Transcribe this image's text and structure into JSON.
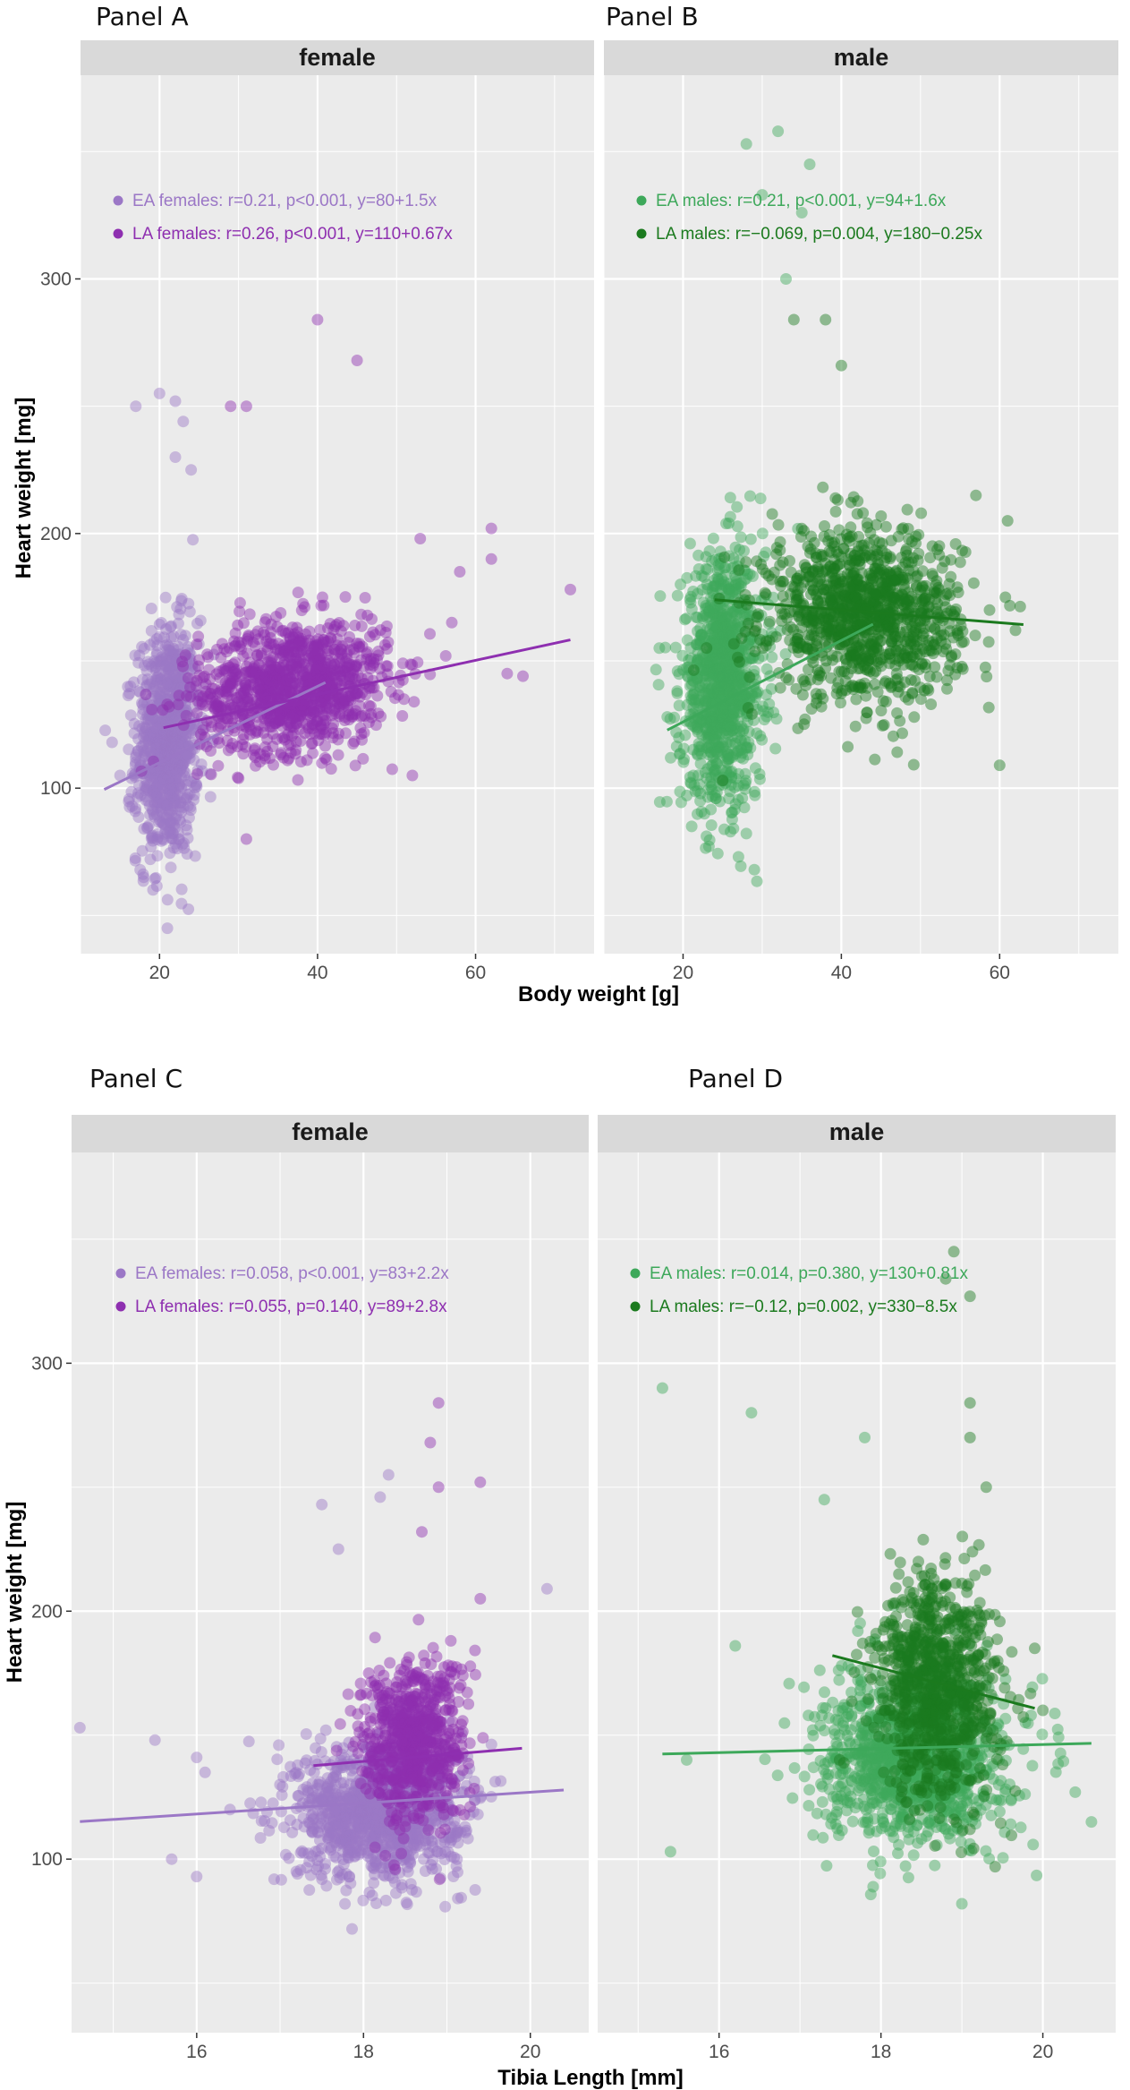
{
  "figure": {
    "top_row": {
      "panel_labels": [
        "Panel A",
        "Panel B"
      ],
      "x_title": "Body weight [g]",
      "y_title": "Heart weight [mg]"
    },
    "bottom_row": {
      "panel_labels": [
        "Panel C",
        "Panel D"
      ],
      "x_title": "Tibia Length [mm]",
      "y_title": "Heart weight [mg]"
    }
  },
  "colors": {
    "ea_female": "#9B77C6",
    "la_female": "#8E2FB0",
    "ea_male": "#3DA85A",
    "la_male": "#1B7A1E",
    "panel_background": "#EBEBEB",
    "strip_background": "#D9D9D9",
    "gridline": "#FFFFFF"
  },
  "chart_data": [
    {
      "type": "scatter",
      "panel": "Panel A",
      "strip": "female",
      "xlabel": "Body weight [g]",
      "ylabel": "Heart weight [mg]",
      "xlim": [
        10,
        75
      ],
      "ylim": [
        35,
        380
      ],
      "x_ticks": [
        20,
        40,
        60
      ],
      "y_ticks": [
        100,
        200,
        300
      ],
      "grid": true,
      "legend_position": "top-left",
      "series": [
        {
          "name": "EA females",
          "legend": "EA females: r=0.21, p<0.001, y=80+1.5x",
          "color_key": "ea_female",
          "cloud": {
            "x_center": 21,
            "x_spread": 2.6,
            "y_center": 118,
            "y_spread": 30,
            "n": 900
          },
          "fit": {
            "intercept": 80,
            "slope": 1.5,
            "x_range": [
              13,
              41
            ]
          },
          "outliers": [
            [
              17,
              250
            ],
            [
              20,
              255
            ],
            [
              22,
              252
            ],
            [
              23,
              244
            ],
            [
              22,
              230
            ],
            [
              21,
              45
            ],
            [
              18,
              65
            ],
            [
              14,
              118
            ],
            [
              15,
              105
            ],
            [
              24,
              225
            ]
          ]
        },
        {
          "name": "LA females",
          "legend": "LA females: r=0.26, p<0.001, y=110+0.67x",
          "color_key": "la_female",
          "cloud": {
            "x_center": 37,
            "x_spread": 8,
            "y_center": 140,
            "y_spread": 17,
            "n": 1100
          },
          "fit": {
            "intercept": 110,
            "slope": 0.67,
            "x_range": [
              20.5,
              72
            ]
          },
          "outliers": [
            [
              40,
              284
            ],
            [
              45,
              268
            ],
            [
              29,
              250
            ],
            [
              31,
              250
            ],
            [
              72,
              178
            ],
            [
              62,
              202
            ],
            [
              62,
              190
            ],
            [
              64,
              145
            ],
            [
              66,
              144
            ],
            [
              53,
              198
            ],
            [
              58,
              185
            ],
            [
              57,
              165
            ],
            [
              52,
              105
            ],
            [
              31,
              80
            ]
          ]
        }
      ]
    },
    {
      "type": "scatter",
      "panel": "Panel B",
      "strip": "male",
      "xlabel": "Body weight [g]",
      "ylabel": "Heart weight [mg]",
      "xlim": [
        10,
        75
      ],
      "ylim": [
        35,
        380
      ],
      "x_ticks": [
        20,
        40,
        60
      ],
      "y_ticks": [
        100,
        200,
        300
      ],
      "grid": true,
      "legend_position": "top-left",
      "series": [
        {
          "name": "EA males",
          "legend": "EA males: r=0.21, p<0.001, y=94+1.6x",
          "color_key": "ea_male",
          "cloud": {
            "x_center": 25,
            "x_spread": 3.5,
            "y_center": 142,
            "y_spread": 32,
            "n": 1000
          },
          "fit": {
            "intercept": 94,
            "slope": 1.6,
            "x_range": [
              18,
              44
            ]
          },
          "outliers": [
            [
              28,
              353
            ],
            [
              32,
              358
            ],
            [
              30,
              333
            ],
            [
              36,
              345
            ],
            [
              35,
              326
            ],
            [
              17,
              155
            ],
            [
              18,
              128
            ],
            [
              27,
              73
            ],
            [
              29,
              68
            ],
            [
              33,
              300
            ]
          ]
        },
        {
          "name": "LA males",
          "legend": "LA males: r=−0.069, p=0.004, y=180−0.25x",
          "color_key": "la_male",
          "cloud": {
            "x_center": 43,
            "x_spread": 8,
            "y_center": 168,
            "y_spread": 22,
            "n": 1100
          },
          "fit": {
            "intercept": 180,
            "slope": -0.25,
            "x_range": [
              24,
              63
            ]
          },
          "outliers": [
            [
              38,
              284
            ],
            [
              34,
              284
            ],
            [
              40,
              266
            ],
            [
              61,
              205
            ],
            [
              62,
              162
            ],
            [
              60,
              109
            ],
            [
              57,
              215
            ],
            [
              25,
              103
            ]
          ]
        }
      ]
    },
    {
      "type": "scatter",
      "panel": "Panel C",
      "strip": "female",
      "xlabel": "Tibia Length [mm]",
      "ylabel": "Heart weight [mg]",
      "xlim": [
        14.5,
        20.7
      ],
      "ylim": [
        30,
        385
      ],
      "x_ticks": [
        16,
        18,
        20
      ],
      "y_ticks": [
        100,
        200,
        300
      ],
      "grid": true,
      "legend_position": "top-left",
      "series": [
        {
          "name": "EA females",
          "legend": "EA females: r=0.058, p<0.001, y=83+2.2x",
          "color_key": "ea_female",
          "cloud": {
            "x_center": 18.2,
            "x_spread": 0.65,
            "y_center": 120,
            "y_spread": 18,
            "n": 1200
          },
          "fit": {
            "intercept": 83,
            "slope": 2.2,
            "x_range": [
              14.6,
              20.4
            ]
          },
          "outliers": [
            [
              14.6,
              153
            ],
            [
              15.5,
              148
            ],
            [
              16,
              141
            ],
            [
              16.1,
              135
            ],
            [
              15.7,
              100
            ],
            [
              16,
              93
            ],
            [
              16.4,
              120
            ],
            [
              20.2,
              209
            ],
            [
              17.5,
              243
            ],
            [
              17.7,
              225
            ],
            [
              18.2,
              246
            ],
            [
              18.3,
              255
            ]
          ]
        },
        {
          "name": "LA females",
          "legend": "LA females: r=0.055, p=0.140, y=89+2.8x",
          "color_key": "la_female",
          "cloud": {
            "x_center": 18.6,
            "x_spread": 0.42,
            "y_center": 148,
            "y_spread": 22,
            "n": 700
          },
          "fit": {
            "intercept": 89,
            "slope": 2.8,
            "x_range": [
              17.4,
              19.9
            ]
          },
          "outliers": [
            [
              18.9,
              284
            ],
            [
              18.8,
              268
            ],
            [
              18.9,
              250
            ],
            [
              19.4,
              252
            ],
            [
              18.7,
              232
            ],
            [
              19.4,
              205
            ]
          ]
        }
      ]
    },
    {
      "type": "scatter",
      "panel": "Panel D",
      "strip": "male",
      "xlabel": "Tibia Length [mm]",
      "ylabel": "Heart weight [mg]",
      "xlim": [
        14.5,
        20.9
      ],
      "ylim": [
        30,
        385
      ],
      "x_ticks": [
        16,
        18,
        20
      ],
      "y_ticks": [
        100,
        200,
        300
      ],
      "grid": true,
      "legend_position": "top-left",
      "series": [
        {
          "name": "EA males",
          "legend": "EA males: r=0.014, p=0.380, y=130+0.81x",
          "color_key": "ea_male",
          "cloud": {
            "x_center": 18.4,
            "x_spread": 0.75,
            "y_center": 140,
            "y_spread": 22,
            "n": 1100
          },
          "fit": {
            "intercept": 130,
            "slope": 0.81,
            "x_range": [
              15.3,
              20.6
            ]
          },
          "outliers": [
            [
              15.3,
              290
            ],
            [
              16.4,
              280
            ],
            [
              16.2,
              186
            ],
            [
              15.6,
              140
            ],
            [
              15.4,
              103
            ],
            [
              17.3,
              245
            ],
            [
              19,
              82
            ],
            [
              20.6,
              115
            ],
            [
              20.4,
              127
            ],
            [
              17.8,
              270
            ]
          ]
        },
        {
          "name": "LA males",
          "legend": "LA males: r=−0.12, p=0.002, y=330−8.5x",
          "color_key": "la_male",
          "cloud": {
            "x_center": 18.7,
            "x_spread": 0.5,
            "y_center": 170,
            "y_spread": 30,
            "n": 900
          },
          "fit": {
            "intercept": 330,
            "slope": -8.5,
            "x_range": [
              17.4,
              19.9
            ]
          },
          "outliers": [
            [
              18.9,
              345
            ],
            [
              18.8,
              334
            ],
            [
              19.1,
              327
            ],
            [
              19.1,
              284
            ],
            [
              19.1,
              270
            ],
            [
              19.3,
              250
            ],
            [
              19.9,
              185
            ],
            [
              20,
              160
            ]
          ]
        }
      ]
    }
  ]
}
